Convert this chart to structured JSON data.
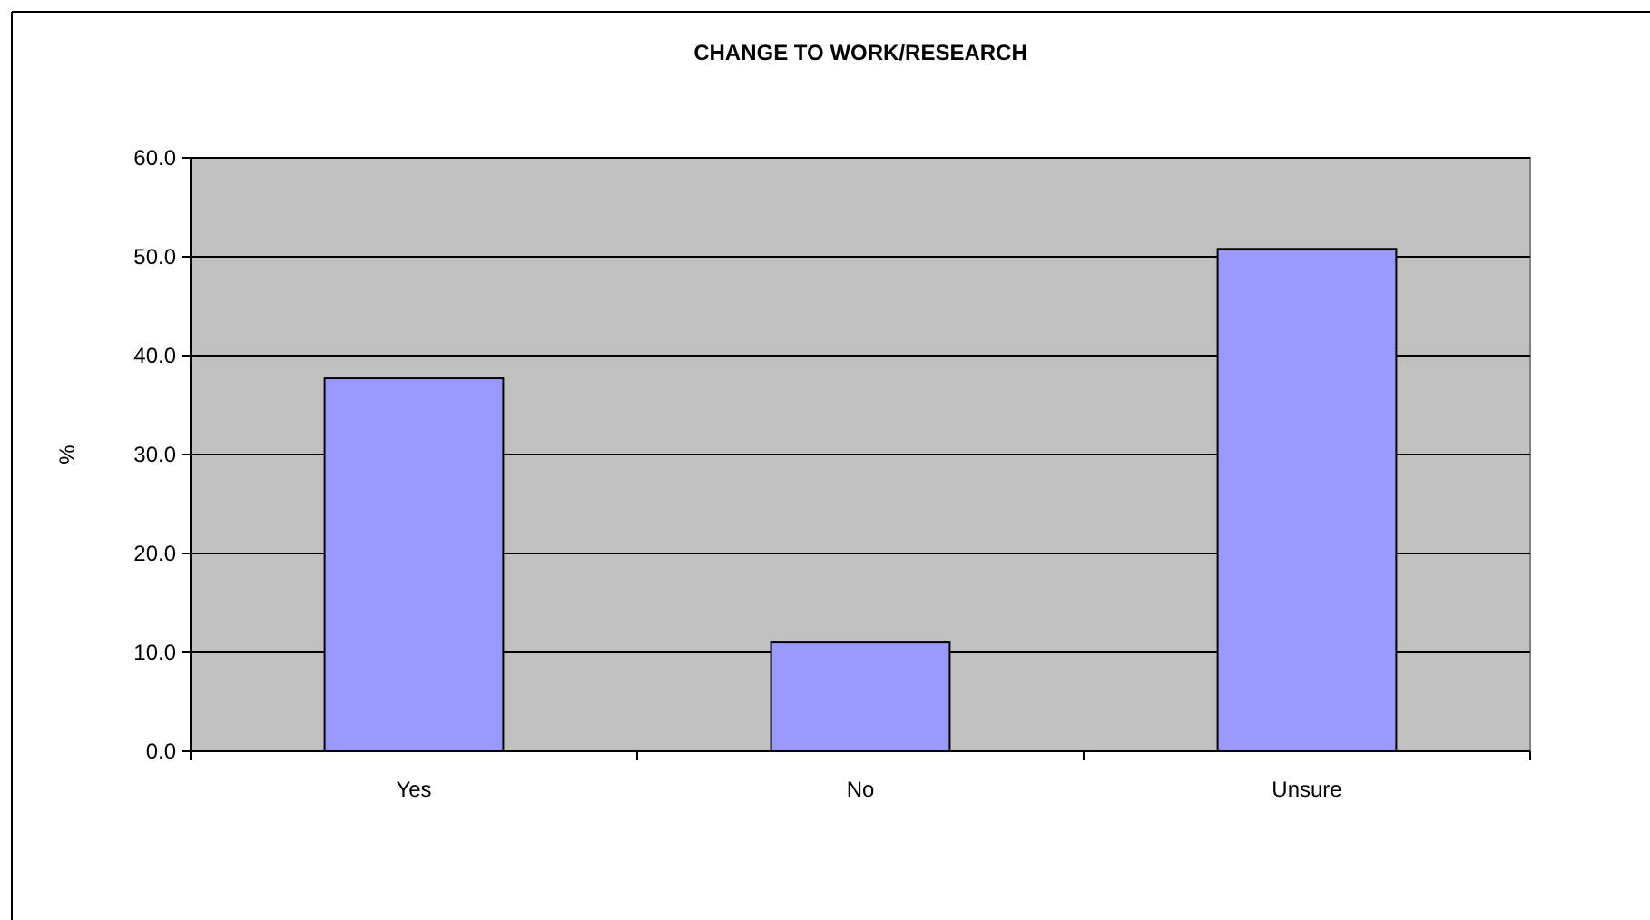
{
  "chart_data": {
    "type": "bar",
    "title": "CHANGE TO WORK/RESEARCH",
    "ylabel": "%",
    "categories": [
      "Yes",
      "No",
      "Unsure"
    ],
    "values": [
      37.7,
      11.0,
      50.8
    ],
    "color": "#9999ff",
    "ylim": [
      0,
      60
    ],
    "yticks": [
      {
        "value": 0,
        "label": "0.0"
      },
      {
        "value": 10,
        "label": "10.0"
      },
      {
        "value": 20,
        "label": "20.0"
      },
      {
        "value": 30,
        "label": "30.0"
      },
      {
        "value": 40,
        "label": "40.0"
      },
      {
        "value": 50,
        "label": "50.0"
      },
      {
        "value": 60,
        "label": "60.0"
      }
    ],
    "grid": "y"
  }
}
